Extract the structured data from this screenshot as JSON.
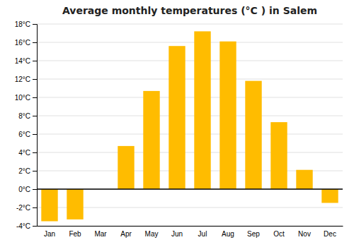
{
  "chart_data": {
    "type": "bar",
    "title": "Average monthly temperatures (°C ) in Salem",
    "categories": [
      "Jan",
      "Feb",
      "Mar",
      "Apr",
      "May",
      "Jun",
      "Jul",
      "Aug",
      "Sep",
      "Oct",
      "Nov",
      "Dec"
    ],
    "values": [
      -3.5,
      -3.3,
      0.0,
      4.7,
      10.7,
      15.6,
      17.2,
      16.1,
      11.8,
      7.3,
      2.1,
      -1.5
    ],
    "color": "#FFBC00",
    "ylim": [
      -4,
      18
    ],
    "yticks": [
      {
        "value": -4,
        "label": "-4°C"
      },
      {
        "value": -2,
        "label": "-2°C"
      },
      {
        "value": 0,
        "label": "0°C"
      },
      {
        "value": 2,
        "label": "2°C"
      },
      {
        "value": 4,
        "label": "4°C"
      },
      {
        "value": 6,
        "label": "6°C"
      },
      {
        "value": 8,
        "label": "8°C"
      },
      {
        "value": 10,
        "label": "10°C"
      },
      {
        "value": 12,
        "label": "12°C"
      },
      {
        "value": 14,
        "label": "14°C"
      },
      {
        "value": 16,
        "label": "16°C"
      },
      {
        "value": 18,
        "label": "18°C"
      }
    ],
    "grid": true
  }
}
